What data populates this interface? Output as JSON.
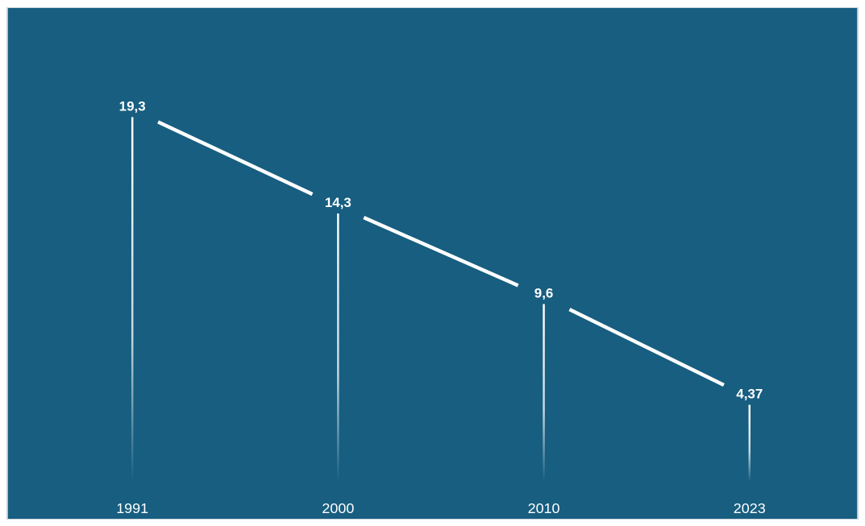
{
  "colors": {
    "background": "#175e80",
    "line": "#ffffff",
    "text": "#ffffff"
  },
  "chart_data": {
    "type": "line",
    "title": "",
    "xlabel": "",
    "ylabel": "",
    "categories": [
      "1991",
      "2000",
      "2010",
      "2023"
    ],
    "series": [
      {
        "values": [
          19.3,
          14.3,
          9.6,
          4.37
        ],
        "labels": [
          "19,3",
          "14,3",
          "9,6",
          "4,37"
        ]
      }
    ],
    "ylim": [
      0,
      24
    ],
    "grid": false,
    "legend": "none",
    "drop_lines": true
  }
}
